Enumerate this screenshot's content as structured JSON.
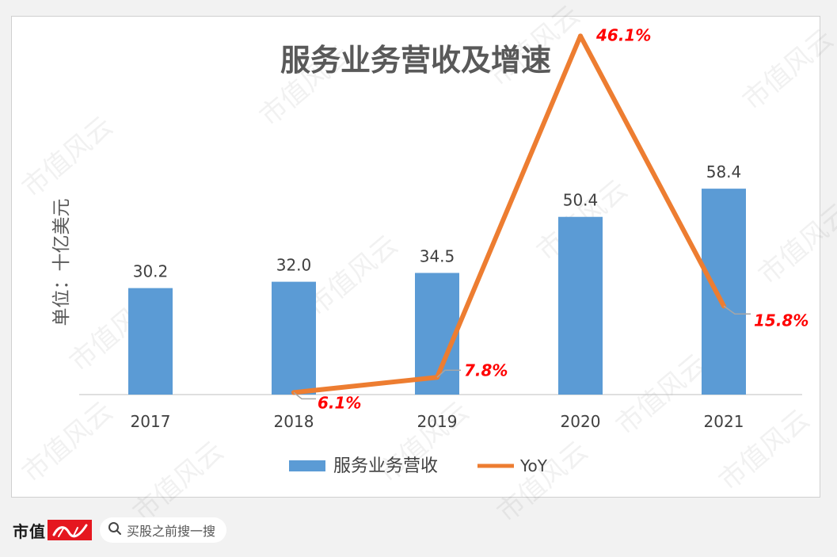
{
  "chart_data": {
    "type": "bar",
    "title": "服务业务营收及增速",
    "ylabel": "单位：十亿美元",
    "categories": [
      "2017",
      "2018",
      "2019",
      "2020",
      "2021"
    ],
    "ylim": [
      0,
      70
    ],
    "series": [
      {
        "name": "服务业务营收",
        "type": "bar",
        "values": [
          30.2,
          32.0,
          34.5,
          50.4,
          58.4
        ],
        "labels": [
          "30.2",
          "32.0",
          "34.5",
          "50.4",
          "58.4"
        ],
        "color": "#5b9bd5"
      },
      {
        "name": "YoY",
        "type": "line",
        "values": [
          null,
          6.1,
          7.8,
          46.1,
          15.8
        ],
        "labels": [
          "",
          "6.1%",
          "7.8%",
          "46.1%",
          "15.8%"
        ],
        "color": "#ed7d31",
        "label_color": "#ff0000"
      }
    ],
    "legend_position": "bottom",
    "grid": false
  },
  "watermark": "市值风云",
  "footer": {
    "brand": "市值",
    "search_placeholder": "买股之前搜一搜"
  }
}
